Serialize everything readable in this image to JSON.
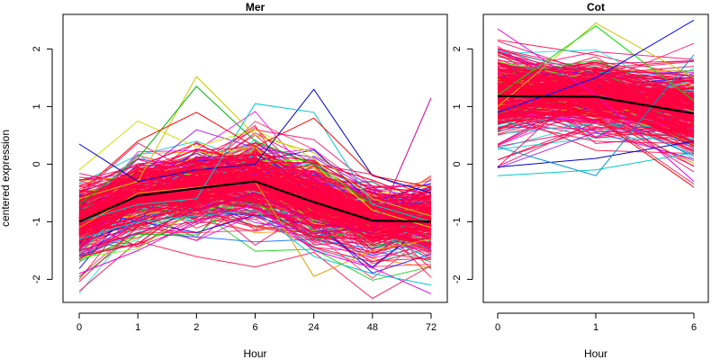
{
  "chart_data": {
    "type": "line",
    "ylabel": "centered expression",
    "ylim": [
      -2.4,
      2.6
    ],
    "yticks": [
      -2,
      -1,
      0,
      1,
      2
    ],
    "ytick_labels": [
      "-2",
      "-1",
      "0",
      "1",
      "2"
    ],
    "grid": false,
    "legend": "none",
    "panels": [
      {
        "title": "Mer",
        "xlabel": "Hour",
        "categories": [
          "0",
          "1",
          "2",
          "6",
          "24",
          "48",
          "72"
        ],
        "mean_line": {
          "color": "#000000",
          "values": [
            -1.0,
            -0.55,
            -0.42,
            -0.3,
            -0.66,
            -0.98,
            -1.0
          ]
        },
        "profile_band": {
          "count": 260,
          "center": [
            -1.0,
            -0.55,
            -0.42,
            -0.3,
            -0.66,
            -0.98,
            -1.0
          ],
          "spread": [
            0.45,
            0.42,
            0.45,
            0.5,
            0.5,
            0.42,
            0.42
          ]
        },
        "outlier_profiles": [
          {
            "color": "#c8e600",
            "values": [
              -0.1,
              0.75,
              0.3,
              0.6,
              0.1,
              -0.8,
              -1.1
            ]
          },
          {
            "color": "#c8c800",
            "values": [
              -0.6,
              -0.3,
              1.52,
              0.5,
              0.2,
              -0.6,
              -0.9
            ]
          },
          {
            "color": "#00b400",
            "values": [
              -0.7,
              0.1,
              1.35,
              0.4,
              0.0,
              -0.7,
              -1.0
            ]
          },
          {
            "color": "#e6a000",
            "values": [
              -1.1,
              -0.5,
              -0.4,
              -0.3,
              -1.95,
              -1.5,
              -1.3
            ]
          },
          {
            "color": "#c80096",
            "values": [
              -1.5,
              -1.2,
              -0.8,
              -0.5,
              -1.0,
              -1.2,
              1.15
            ]
          },
          {
            "color": "#0000c8",
            "values": [
              0.35,
              -0.3,
              -0.1,
              0.0,
              1.3,
              -0.2,
              -0.5
            ]
          },
          {
            "color": "#00c8c8",
            "values": [
              -1.0,
              -0.7,
              -0.6,
              1.05,
              0.9,
              -0.7,
              -1.0
            ]
          },
          {
            "color": "#e600e6",
            "values": [
              -1.9,
              -1.5,
              -1.0,
              -0.7,
              -1.5,
              -1.8,
              -2.25
            ]
          },
          {
            "color": "#00c8c8",
            "values": [
              -1.3,
              -1.0,
              -0.9,
              -0.8,
              -1.6,
              -1.9,
              -2.1
            ]
          },
          {
            "color": "#ff0000",
            "values": [
              -0.5,
              0.4,
              0.9,
              0.3,
              0.8,
              -0.2,
              -0.4
            ]
          }
        ]
      },
      {
        "title": "Cot",
        "xlabel": "Hour",
        "categories": [
          "0",
          "1",
          "6"
        ],
        "mean_line": {
          "color": "#000000",
          "values": [
            1.18,
            1.17,
            0.88
          ]
        },
        "profile_band": {
          "count": 260,
          "center": [
            1.18,
            1.17,
            0.88
          ],
          "spread": [
            0.55,
            0.45,
            0.55
          ]
        },
        "outlier_profiles": [
          {
            "color": "#00c8c8",
            "values": [
              -0.2,
              -0.1,
              0.2
            ]
          },
          {
            "color": "#0000c8",
            "values": [
              -0.05,
              0.1,
              0.4
            ]
          },
          {
            "color": "#0096c8",
            "values": [
              0.3,
              -0.2,
              1.9
            ]
          },
          {
            "color": "#e600e6",
            "values": [
              2.35,
              1.2,
              -0.3
            ]
          },
          {
            "color": "#c8c800",
            "values": [
              1.0,
              2.45,
              1.5
            ]
          },
          {
            "color": "#00e600",
            "values": [
              1.2,
              2.4,
              1.1
            ]
          },
          {
            "color": "#0000ff",
            "values": [
              0.9,
              1.5,
              2.5
            ]
          },
          {
            "color": "#ff0000",
            "values": [
              1.5,
              0.8,
              -0.4
            ]
          }
        ]
      }
    ]
  }
}
